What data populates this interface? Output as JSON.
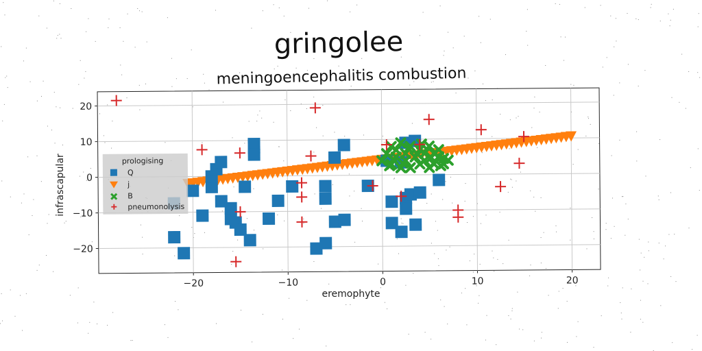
{
  "chart_data": {
    "type": "scatter",
    "title": "gringolee",
    "subtitle": "meningoencephalitis combustion",
    "xlabel": "eremophyte",
    "ylabel": "infrascapular",
    "xlim": [
      -30,
      23
    ],
    "ylim": [
      -27,
      24
    ],
    "xticks": [
      -20,
      -10,
      0,
      10,
      20
    ],
    "yticks": [
      -20,
      -10,
      0,
      10,
      20
    ],
    "grid": true,
    "legend": {
      "title": "prologising",
      "placement": "center-left"
    },
    "series": [
      {
        "name": "Q",
        "marker": "square",
        "color": "#1f77b4",
        "points": [
          [
            -22,
            -17
          ],
          [
            -21,
            -21.5
          ],
          [
            -22,
            -7.5
          ],
          [
            -20,
            -4
          ],
          [
            -19,
            -11
          ],
          [
            -18,
            -3
          ],
          [
            -18,
            0
          ],
          [
            -17.5,
            2
          ],
          [
            -17,
            4
          ],
          [
            -17,
            -7
          ],
          [
            -16,
            -12
          ],
          [
            -16,
            -9
          ],
          [
            -15.5,
            -13
          ],
          [
            -15,
            -15
          ],
          [
            -14.5,
            -3
          ],
          [
            -14,
            -18
          ],
          [
            -13.5,
            8
          ],
          [
            -13.5,
            9
          ],
          [
            -13.5,
            6
          ],
          [
            -12,
            -12
          ],
          [
            -11,
            -7
          ],
          [
            -9.5,
            -3
          ],
          [
            -7,
            -20.5
          ],
          [
            -6,
            -19
          ],
          [
            -6,
            -3
          ],
          [
            -6,
            -6.5
          ],
          [
            -5,
            -13
          ],
          [
            -5,
            5
          ],
          [
            -4,
            -12.5
          ],
          [
            -4,
            8.5
          ],
          [
            -1.5,
            -3
          ],
          [
            0.5,
            4
          ],
          [
            1,
            -7.5
          ],
          [
            1,
            -13.5
          ],
          [
            2,
            -16
          ],
          [
            2,
            3.5
          ],
          [
            2.5,
            9
          ],
          [
            2.5,
            -6.5
          ],
          [
            2.5,
            -9.5
          ],
          [
            3,
            -5.5
          ],
          [
            3.5,
            9.5
          ],
          [
            3.5,
            -14
          ],
          [
            4,
            -5
          ],
          [
            6,
            -1.5
          ]
        ]
      },
      {
        "name": "j",
        "marker": "triangle-down",
        "color": "#ff7f0e",
        "line": {
          "x0": -20.5,
          "x1": 20,
          "y0": -2,
          "y1": 10.5,
          "count": 78
        }
      },
      {
        "name": "B",
        "marker": "x",
        "color": "#2ca02c",
        "points": [
          [
            0,
            4
          ],
          [
            0.5,
            6
          ],
          [
            1,
            8
          ],
          [
            1,
            3
          ],
          [
            1.5,
            5
          ],
          [
            1.5,
            7
          ],
          [
            2,
            2
          ],
          [
            2,
            9
          ],
          [
            2.5,
            6
          ],
          [
            2.5,
            4
          ],
          [
            3,
            2
          ],
          [
            3,
            8
          ],
          [
            3.5,
            5
          ],
          [
            4,
            3
          ],
          [
            4,
            7
          ],
          [
            4.5,
            6
          ],
          [
            4.5,
            4
          ],
          [
            5,
            2
          ],
          [
            5,
            8
          ],
          [
            5.5,
            6
          ],
          [
            5.5,
            3
          ],
          [
            6,
            5
          ],
          [
            6,
            7
          ],
          [
            6.5,
            3
          ],
          [
            6.5,
            4.5
          ],
          [
            7,
            4
          ],
          [
            2.2,
            3.3
          ],
          [
            3.8,
            5.7
          ],
          [
            5.2,
            4.8
          ],
          [
            1.2,
            4.4
          ],
          [
            6.2,
            2.5
          ],
          [
            0.8,
            2.6
          ],
          [
            4.2,
            8.6
          ],
          [
            2.8,
            7.4
          ]
        ]
      },
      {
        "name": "pneumonolysis",
        "marker": "plus",
        "color": "#d62728",
        "points": [
          [
            -28,
            21.5
          ],
          [
            -19,
            7.5
          ],
          [
            -15,
            6.5
          ],
          [
            -15,
            -10
          ],
          [
            -15.5,
            -24
          ],
          [
            -8.5,
            -2
          ],
          [
            -8.5,
            -6
          ],
          [
            -8.5,
            -13
          ],
          [
            -7.5,
            5.5
          ],
          [
            -7,
            19
          ],
          [
            -1,
            -3
          ],
          [
            0.5,
            8.5
          ],
          [
            2,
            -6
          ],
          [
            4,
            8.5
          ],
          [
            5,
            15.5
          ],
          [
            8,
            -12
          ],
          [
            8,
            -10
          ],
          [
            10.5,
            12.5
          ],
          [
            12.5,
            -3.5
          ],
          [
            14.5,
            3
          ],
          [
            15,
            10.5
          ]
        ]
      }
    ]
  }
}
